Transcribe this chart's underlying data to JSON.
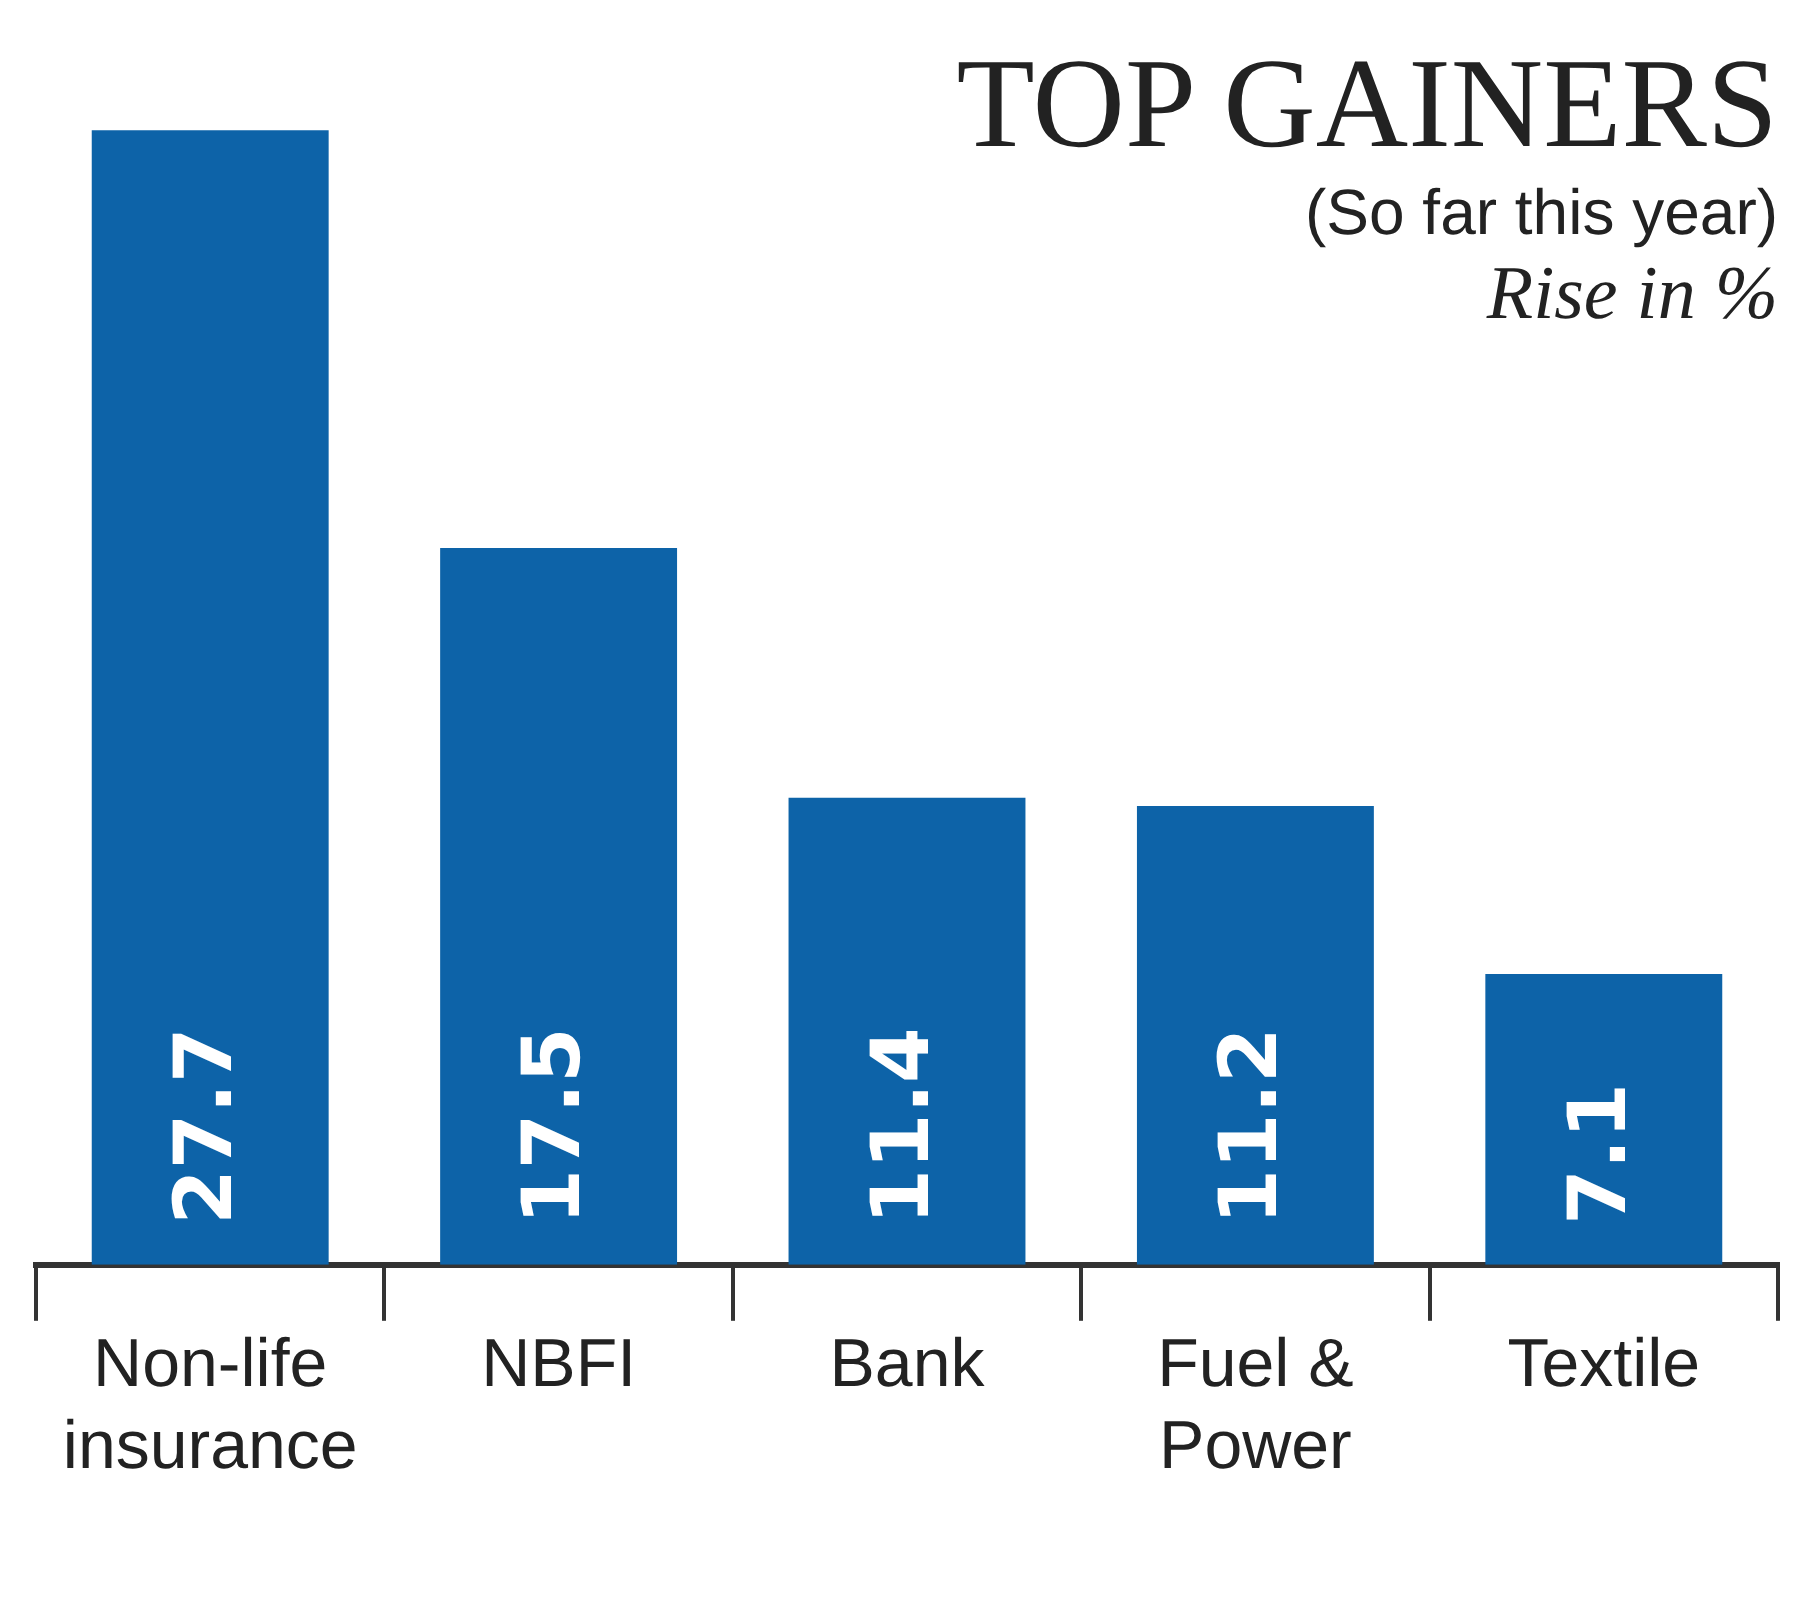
{
  "chart_data": {
    "type": "bar",
    "title": "TOP GAINERS",
    "subtitle": "(So far this year)",
    "ylabel": "Rise in %",
    "categories": [
      "Non-life insurance",
      "NBFI",
      "Bank",
      "Fuel & Power",
      "Textile"
    ],
    "values": [
      27.7,
      17.5,
      11.4,
      11.2,
      7.1
    ],
    "color": "#0d63a8",
    "data_labels": true,
    "legend": false
  }
}
